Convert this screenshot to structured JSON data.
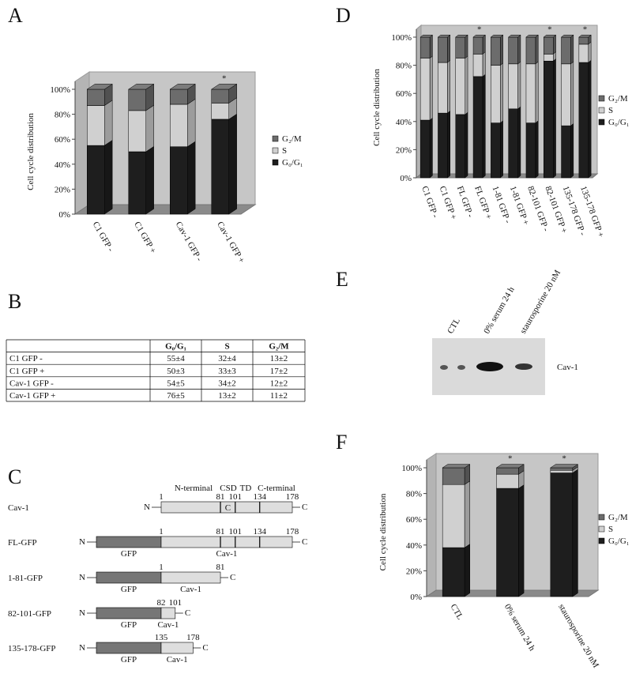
{
  "panel_labels": [
    "A",
    "B",
    "C",
    "D",
    "E",
    "F"
  ],
  "chart_data": [
    {
      "type": "stacked_bar_3d",
      "ylabel": "Cell cycle distribution",
      "categories": [
        "C1 GFP -",
        "C1 GFP +",
        "Cav-1 GFP -",
        "Cav-1 GFP +"
      ],
      "series": [
        {
          "name": "G₀/G₁",
          "color": "#1e1e1e",
          "values": [
            55,
            50,
            54,
            76
          ]
        },
        {
          "name": "S",
          "color": "#d0d0d0",
          "values": [
            32,
            33,
            34,
            13
          ]
        },
        {
          "name": "G₂/M",
          "color": "#6c6c6c",
          "values": [
            13,
            17,
            12,
            11
          ]
        }
      ],
      "ylim": [
        0,
        100
      ],
      "yticks": [
        {
          "value": 0,
          "label": "0%"
        },
        {
          "value": 20,
          "label": "20%"
        },
        {
          "value": 40,
          "label": "40%"
        },
        {
          "value": 60,
          "label": "60%"
        },
        {
          "value": 80,
          "label": "80%"
        },
        {
          "value": 100,
          "label": "100%"
        }
      ],
      "significance": [
        null,
        null,
        null,
        "*"
      ]
    },
    {
      "type": "stacked_bar_3d",
      "ylabel": "Cell cycle distribution",
      "categories": [
        "C1 GFP -",
        "C1 GFP +",
        "FL GFP -",
        "FL GFP +",
        "1-81 GFP -",
        "1-81 GFP +",
        "82-101 GFP -",
        "82-101 GFP +",
        "135-178 GFP -",
        "135-178 GFP +"
      ],
      "series": [
        {
          "name": "G₀/G₁",
          "color": "#1e1e1e",
          "values": [
            41,
            46,
            45,
            72,
            39,
            49,
            39,
            83,
            37,
            82
          ]
        },
        {
          "name": "S",
          "color": "#d0d0d0",
          "values": [
            44,
            36,
            40,
            16,
            41,
            32,
            42,
            5,
            44,
            13
          ]
        },
        {
          "name": "G₂/M",
          "color": "#6c6c6c",
          "values": [
            15,
            18,
            15,
            12,
            20,
            19,
            19,
            12,
            19,
            5
          ]
        }
      ],
      "ylim": [
        0,
        100
      ],
      "yticks": [
        {
          "value": 0,
          "label": "0%"
        },
        {
          "value": 20,
          "label": "20%"
        },
        {
          "value": 40,
          "label": "40%"
        },
        {
          "value": 60,
          "label": "60%"
        },
        {
          "value": 80,
          "label": "80%"
        },
        {
          "value": 100,
          "label": "100%"
        }
      ],
      "significance": [
        null,
        null,
        null,
        "*",
        null,
        null,
        null,
        "*",
        null,
        "*"
      ]
    },
    {
      "type": "stacked_bar_3d",
      "ylabel": "Cell cycle distribution",
      "categories": [
        "CTL",
        "0% serum 24 h",
        "staurosporine 20 nM"
      ],
      "series": [
        {
          "name": "G₀/G₁",
          "color": "#1e1e1e",
          "values": [
            38,
            84,
            96
          ]
        },
        {
          "name": "S",
          "color": "#d0d0d0",
          "values": [
            49,
            11,
            2
          ]
        },
        {
          "name": "G₂/M",
          "color": "#6c6c6c",
          "values": [
            13,
            5,
            2
          ]
        }
      ],
      "ylim": [
        0,
        100
      ],
      "yticks": [
        {
          "value": 0,
          "label": "0%"
        },
        {
          "value": 20,
          "label": "20%"
        },
        {
          "value": 40,
          "label": "40%"
        },
        {
          "value": 60,
          "label": "60%"
        },
        {
          "value": 80,
          "label": "80%"
        },
        {
          "value": 100,
          "label": "100%"
        }
      ],
      "significance": [
        null,
        "*",
        "*"
      ]
    }
  ],
  "table": {
    "header": [
      "G₀/G₁",
      "S",
      "G₂/M"
    ],
    "rows": [
      [
        "C1 GFP -",
        "55±4",
        "32±4",
        "13±2"
      ],
      [
        "C1 GFP +",
        "50±3",
        "33±3",
        "17±2"
      ],
      [
        "Cav-1 GFP -",
        "54±5",
        "34±2",
        "12±2"
      ],
      [
        "Cav-1 GFP +",
        "76±5",
        "13±2",
        "11±2"
      ]
    ]
  },
  "diagram": {
    "domains": [
      "N-terminal",
      "CSD",
      "TD",
      "C-terminal"
    ],
    "constructs": [
      {
        "name": "Cav-1",
        "n_end": "N",
        "c_end": "C",
        "motif": "C",
        "numbers": [
          1,
          81,
          101,
          134,
          178
        ]
      },
      {
        "name": "FL-GFP",
        "n_end": "N",
        "c_end": "C",
        "gfp": "GFP",
        "segment": "Cav-1",
        "numbers": [
          1,
          81,
          101,
          134,
          178
        ]
      },
      {
        "name": "1-81-GFP",
        "n_end": "N",
        "c_end": "C",
        "gfp": "GFP",
        "segment": "Cav-1",
        "numbers": [
          1,
          81
        ]
      },
      {
        "name": "82-101-GFP",
        "n_end": "N",
        "c_end": "C",
        "gfp": "GFP",
        "segment": "Cav-1",
        "numbers": [
          82,
          101
        ]
      },
      {
        "name": "135-178-GFP",
        "n_end": "N",
        "c_end": "C",
        "gfp": "GFP",
        "segment": "Cav-1",
        "numbers": [
          135,
          178
        ]
      }
    ]
  },
  "blot": {
    "lanes": [
      "CTL",
      "0% serum 24 h",
      "staurosporine 20 nM"
    ],
    "band_label": "Cav-1"
  }
}
